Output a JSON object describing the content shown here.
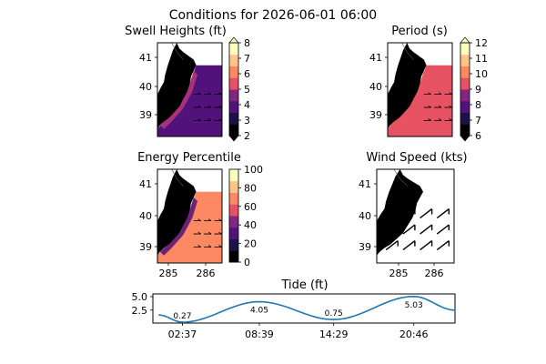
{
  "suptitle": "Conditions for 2026-06-01 06:00",
  "colors": {
    "land": "#000000",
    "sea_background": "#ffffff",
    "tide_line": "#1f77b4",
    "magma": [
      "#000004",
      "#1d1147",
      "#51127c",
      "#822681",
      "#b73779",
      "#e75263",
      "#fc8961",
      "#fec488",
      "#fcfdbf"
    ]
  },
  "panels": [
    {
      "id": "swell",
      "title": "Swell Heights (ft)",
      "colorbar": {
        "ticks": [
          "2",
          "3",
          "4",
          "5",
          "6",
          "7",
          "8"
        ],
        "min": 2,
        "max": 8,
        "extend": "both"
      },
      "lat_ticks": [
        "39",
        "40",
        "41"
      ],
      "lon_ticks": [],
      "vectors": "small-arrows"
    },
    {
      "id": "period",
      "title": "Period (s)",
      "colorbar": {
        "ticks": [
          "6",
          "7",
          "8",
          "9",
          "10",
          "11",
          "12"
        ],
        "min": 6,
        "max": 12,
        "extend": "both"
      },
      "lat_ticks": [
        "39",
        "40",
        "41"
      ],
      "lon_ticks": [],
      "vectors": "small-arrows"
    },
    {
      "id": "energy",
      "title": "Energy Percentile",
      "colorbar": {
        "ticks": [
          "0",
          "20",
          "40",
          "60",
          "80",
          "100"
        ],
        "min": 0,
        "max": 100,
        "extend": "neither"
      },
      "lat_ticks": [
        "39",
        "40",
        "41"
      ],
      "lon_ticks": [
        "285",
        "286"
      ],
      "vectors": "small-arrows"
    },
    {
      "id": "wind",
      "title": "Wind Speed (kts)",
      "colorbar": null,
      "lat_ticks": [
        "39",
        "40",
        "41"
      ],
      "lon_ticks": [
        "285",
        "286"
      ],
      "vectors": "wind-barbs"
    }
  ],
  "chart_data": {
    "type": "line",
    "title": "Tide (ft)",
    "x_tick_labels": [
      "02:37",
      "08:39",
      "14:29",
      "20:46"
    ],
    "y_tick_labels": [
      "2.5",
      "5.0"
    ],
    "x_range_hours": [
      0.3,
      24
    ],
    "ylim": [
      0.1,
      5.5
    ],
    "extremes": [
      {
        "time": "02:37",
        "height": 0.27,
        "label": "0.27"
      },
      {
        "time": "08:39",
        "height": 4.05,
        "label": "4.05"
      },
      {
        "time": "14:29",
        "height": 0.75,
        "label": "0.75"
      },
      {
        "time": "20:46",
        "height": 5.03,
        "label": "5.03"
      }
    ],
    "series": [
      {
        "x_start": "00:45",
        "y_start": 1.6,
        "x_end": "24:00",
        "y_end": 2.5
      }
    ]
  }
}
